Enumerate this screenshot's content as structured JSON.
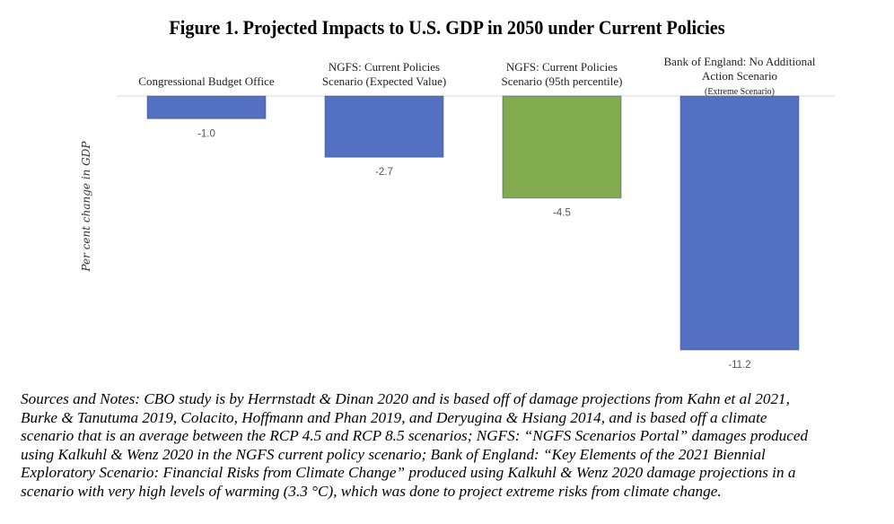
{
  "chart_data": {
    "type": "bar",
    "title": "Figure 1. Projected Impacts to U.S. GDP in 2050 under Current Policies",
    "xlabel": "",
    "ylabel": "Per cent change in GDP",
    "ylim": [
      -11.2,
      0
    ],
    "grid": false,
    "legend": "none",
    "categories": [
      {
        "lines": [
          "Congressional Budget Office"
        ],
        "sub": ""
      },
      {
        "lines": [
          "NGFS: Current Policies",
          "Scenario (Expected Value)"
        ],
        "sub": ""
      },
      {
        "lines": [
          "NGFS: Current Policies",
          "Scenario (95th percentile)"
        ],
        "sub": ""
      },
      {
        "lines": [
          "Bank of England: No Additional",
          "Action Scenario"
        ],
        "sub": "(Extreme Scenario)"
      }
    ],
    "values": [
      -1.0,
      -2.7,
      -4.5,
      -11.2
    ],
    "data_labels": [
      "-1.0",
      "-2.7",
      "-4.5",
      "-11.2"
    ],
    "colors": [
      "#5470C1",
      "#5470C1",
      "#82AB50",
      "#5470C1"
    ]
  },
  "notes": [
    "Sources and Notes: CBO study is by Herrnstadt & Dinan 2020 and is based off of damage projections from Kahn et al 2021,",
    "Burke & Tanutuma 2019, Colacito, Hoffmann and Phan 2019, and Deryugina & Hsiang 2014, and is based off a climate",
    "scenario that is an average between the RCP 4.5 and RCP 8.5 scenarios; NGFS: “NGFS Scenarios Portal” damages produced",
    "using Kalkuhl & Wenz 2020 in the NGFS current policy scenario; Bank of England:  “Key Elements of the 2021 Biennial",
    "Exploratory Scenario: Financial Risks from Climate Change” produced using Kalkuhl & Wenz 2020 damage projections in a",
    "scenario with very high levels of warming (3.3 °C), which was done to project extreme risks from climate change."
  ]
}
